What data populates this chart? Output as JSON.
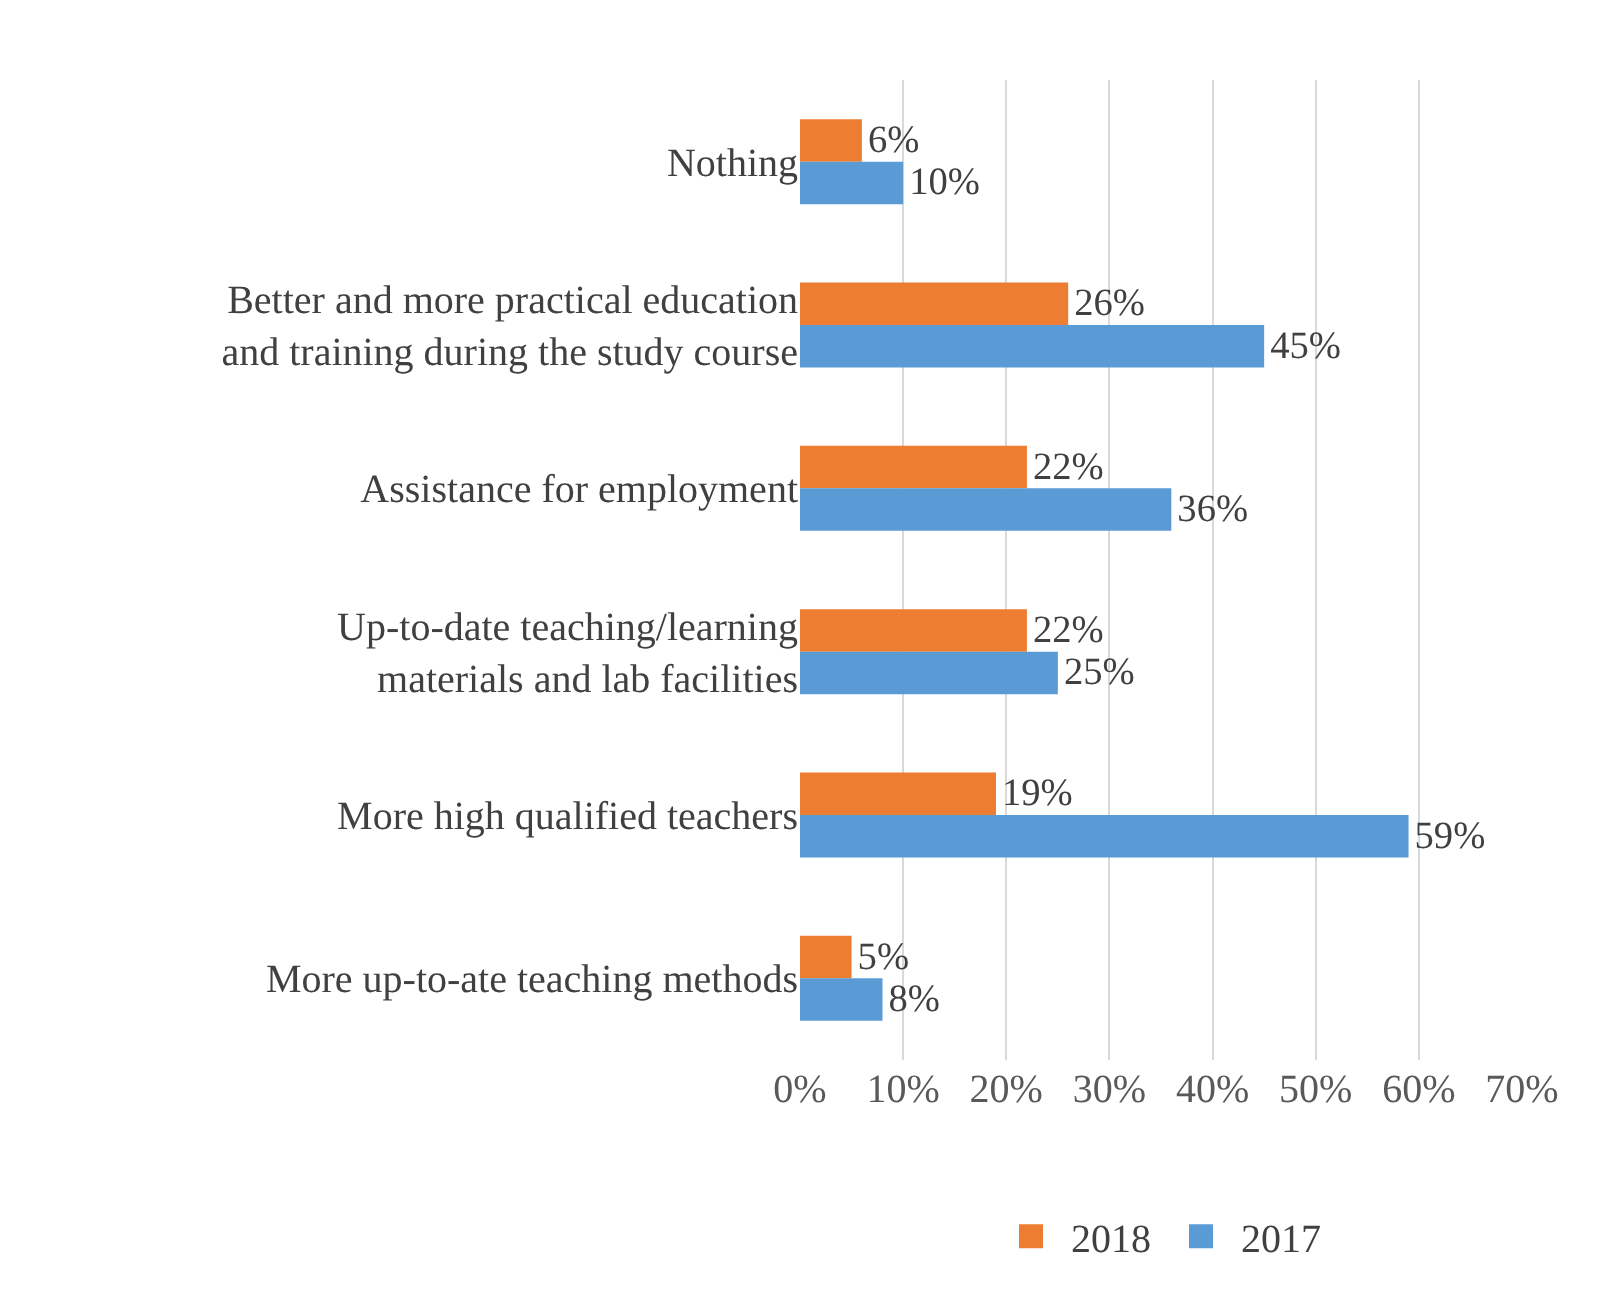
{
  "chart_data": {
    "type": "bar",
    "orientation": "horizontal",
    "categories": [
      "Nothing",
      "Better and more practical education\nand training during the study course",
      "Assistance for employment",
      "Up-to-date teaching/learning\nmaterials and lab facilities",
      "More high qualified teachers",
      "More up-to-ate teaching methods"
    ],
    "series": [
      {
        "name": "2018",
        "color": "#ed7d31",
        "values": [
          6,
          26,
          22,
          22,
          19,
          5
        ],
        "value_labels": [
          "6%",
          "26%",
          "22%",
          "22%",
          "19%",
          "5%"
        ]
      },
      {
        "name": "2017",
        "color": "#5b9bd5",
        "values": [
          10,
          45,
          36,
          25,
          59,
          8
        ],
        "value_labels": [
          "10%",
          "45%",
          "36%",
          "25%",
          "59%",
          "8%"
        ]
      }
    ],
    "xlim": [
      0,
      70
    ],
    "xticks": [
      {
        "value": 0,
        "label": "0%"
      },
      {
        "value": 10,
        "label": "10%"
      },
      {
        "value": 20,
        "label": "20%"
      },
      {
        "value": 30,
        "label": "30%"
      },
      {
        "value": 40,
        "label": "40%"
      },
      {
        "value": 50,
        "label": "50%"
      },
      {
        "value": 60,
        "label": "60%"
      },
      {
        "value": 70,
        "label": "70%"
      }
    ],
    "grid": "x",
    "legend": "bottom"
  }
}
